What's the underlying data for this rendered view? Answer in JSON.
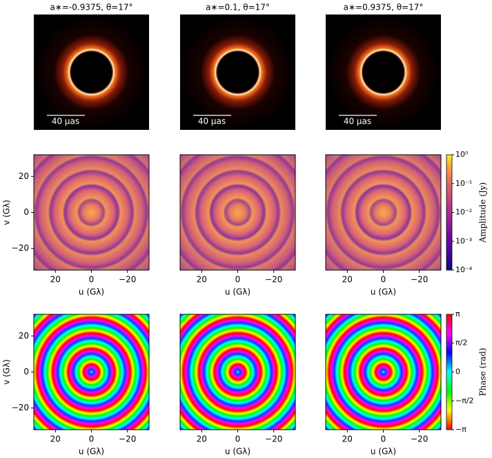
{
  "chart_data": [
    {
      "type": "image",
      "image": "ring",
      "title": "a∗=-0.9375, θ=17°",
      "scalebar": "40 μas"
    },
    {
      "type": "image",
      "image": "ring",
      "title": "a∗=0.1, θ=17°",
      "scalebar": "40 μas"
    },
    {
      "type": "image",
      "image": "ring",
      "title": "a∗=0.9375, θ=17°",
      "scalebar": "40 μas"
    },
    {
      "type": "image",
      "image": "amplitude",
      "xlabel": "u (Gλ)",
      "ylabel": "v (Gλ)",
      "xlim": [
        32,
        -32
      ],
      "xticks": [
        20,
        0,
        {
          "value": -20,
          "label": "−20"
        }
      ],
      "ylim": [
        -32,
        32
      ],
      "yticks": [
        {
          "value": -20,
          "label": "−20"
        },
        0,
        20
      ]
    },
    {
      "type": "image",
      "image": "amplitude",
      "xlabel": "u (Gλ)",
      "xlim": [
        32,
        -32
      ],
      "xticks": [
        20,
        0,
        {
          "value": -20,
          "label": "−20"
        }
      ]
    },
    {
      "type": "image",
      "image": "amplitude",
      "xlabel": "u (Gλ)",
      "xlim": [
        32,
        -32
      ],
      "xticks": [
        20,
        0,
        {
          "value": -20,
          "label": "−20"
        }
      ],
      "colorbar": {
        "label": "Amplitude (Jy)",
        "scale": "log",
        "gradient": "plasmaBar",
        "lim": [
          0.0001,
          1
        ],
        "ticks": [
          {
            "value": 0.0001,
            "label": "10⁻⁴"
          },
          {
            "value": 0.001,
            "label": "10⁻³"
          },
          {
            "value": 0.01,
            "label": "10⁻²"
          },
          {
            "value": 0.1,
            "label": "10⁻¹"
          },
          {
            "value": 1,
            "label": "10⁰"
          }
        ]
      }
    },
    {
      "type": "image",
      "image": "phase",
      "xlabel": "u (Gλ)",
      "ylabel": "v (Gλ)",
      "xlim": [
        32,
        -32
      ],
      "xticks": [
        20,
        0,
        {
          "value": -20,
          "label": "−20"
        }
      ],
      "ylim": [
        -32,
        32
      ],
      "yticks": [
        {
          "value": -20,
          "label": "−20"
        },
        0,
        20
      ]
    },
    {
      "type": "image",
      "image": "phase",
      "xlabel": "u (Gλ)",
      "xlim": [
        32,
        -32
      ],
      "xticks": [
        20,
        0,
        {
          "value": -20,
          "label": "−20"
        }
      ]
    },
    {
      "type": "image",
      "image": "phase",
      "xlabel": "u (Gλ)",
      "xlim": [
        32,
        -32
      ],
      "xticks": [
        20,
        0,
        {
          "value": -20,
          "label": "−20"
        }
      ],
      "colorbar": {
        "label": "Phase (rad)",
        "scale": "linear",
        "gradient": "hsvBar",
        "lim": [
          -3.14159,
          3.14159
        ],
        "ticks": [
          {
            "value": -3.14159,
            "label": "−π"
          },
          {
            "value": -1.5708,
            "label": "−π/2"
          },
          0,
          {
            "value": 1.5708,
            "label": "π/2"
          },
          {
            "value": 3.14159,
            "label": "π"
          }
        ]
      }
    }
  ]
}
